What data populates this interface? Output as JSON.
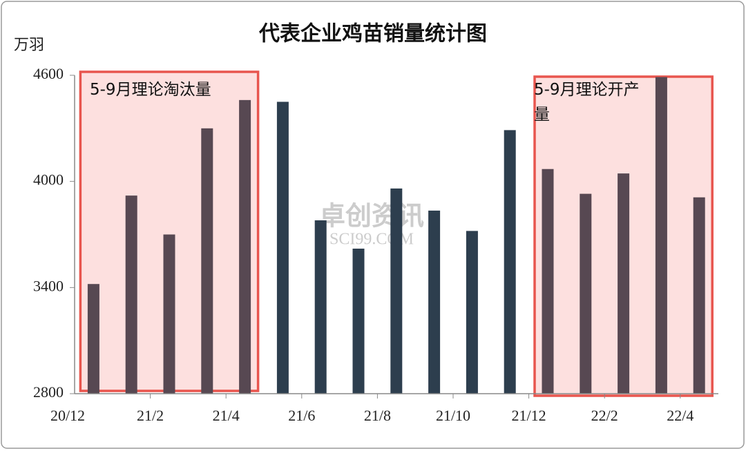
{
  "chart_data": {
    "type": "bar",
    "title": "代表企业鸡苗销量统计图",
    "y_label": "万羽",
    "values": [
      3420,
      3920,
      3700,
      4300,
      4460,
      4450,
      3780,
      3620,
      3960,
      3835,
      3720,
      4290,
      4070,
      3930,
      4045,
      4590,
      3910
    ],
    "colors": [
      "#574852",
      "#574852",
      "#574852",
      "#574852",
      "#574852",
      "#2d3e4e",
      "#2d3e4e",
      "#2d3e4e",
      "#2d3e4e",
      "#2d3e4e",
      "#2d3e4e",
      "#2d3e4e",
      "#574852",
      "#574852",
      "#574852",
      "#574852",
      "#574852"
    ],
    "xticks": [
      "20/12",
      "21/2",
      "21/4",
      "21/6",
      "21/8",
      "21/10",
      "21/12",
      "22/2",
      "22/4"
    ],
    "ylim": [
      2800,
      4600
    ],
    "yticks": [
      2800,
      3400,
      4000,
      4600
    ],
    "annotations": [
      "5-9月理论淘汰量",
      "5-9月理论开产量"
    ],
    "watermark": [
      "卓创资讯",
      "SCI99.COM"
    ]
  }
}
